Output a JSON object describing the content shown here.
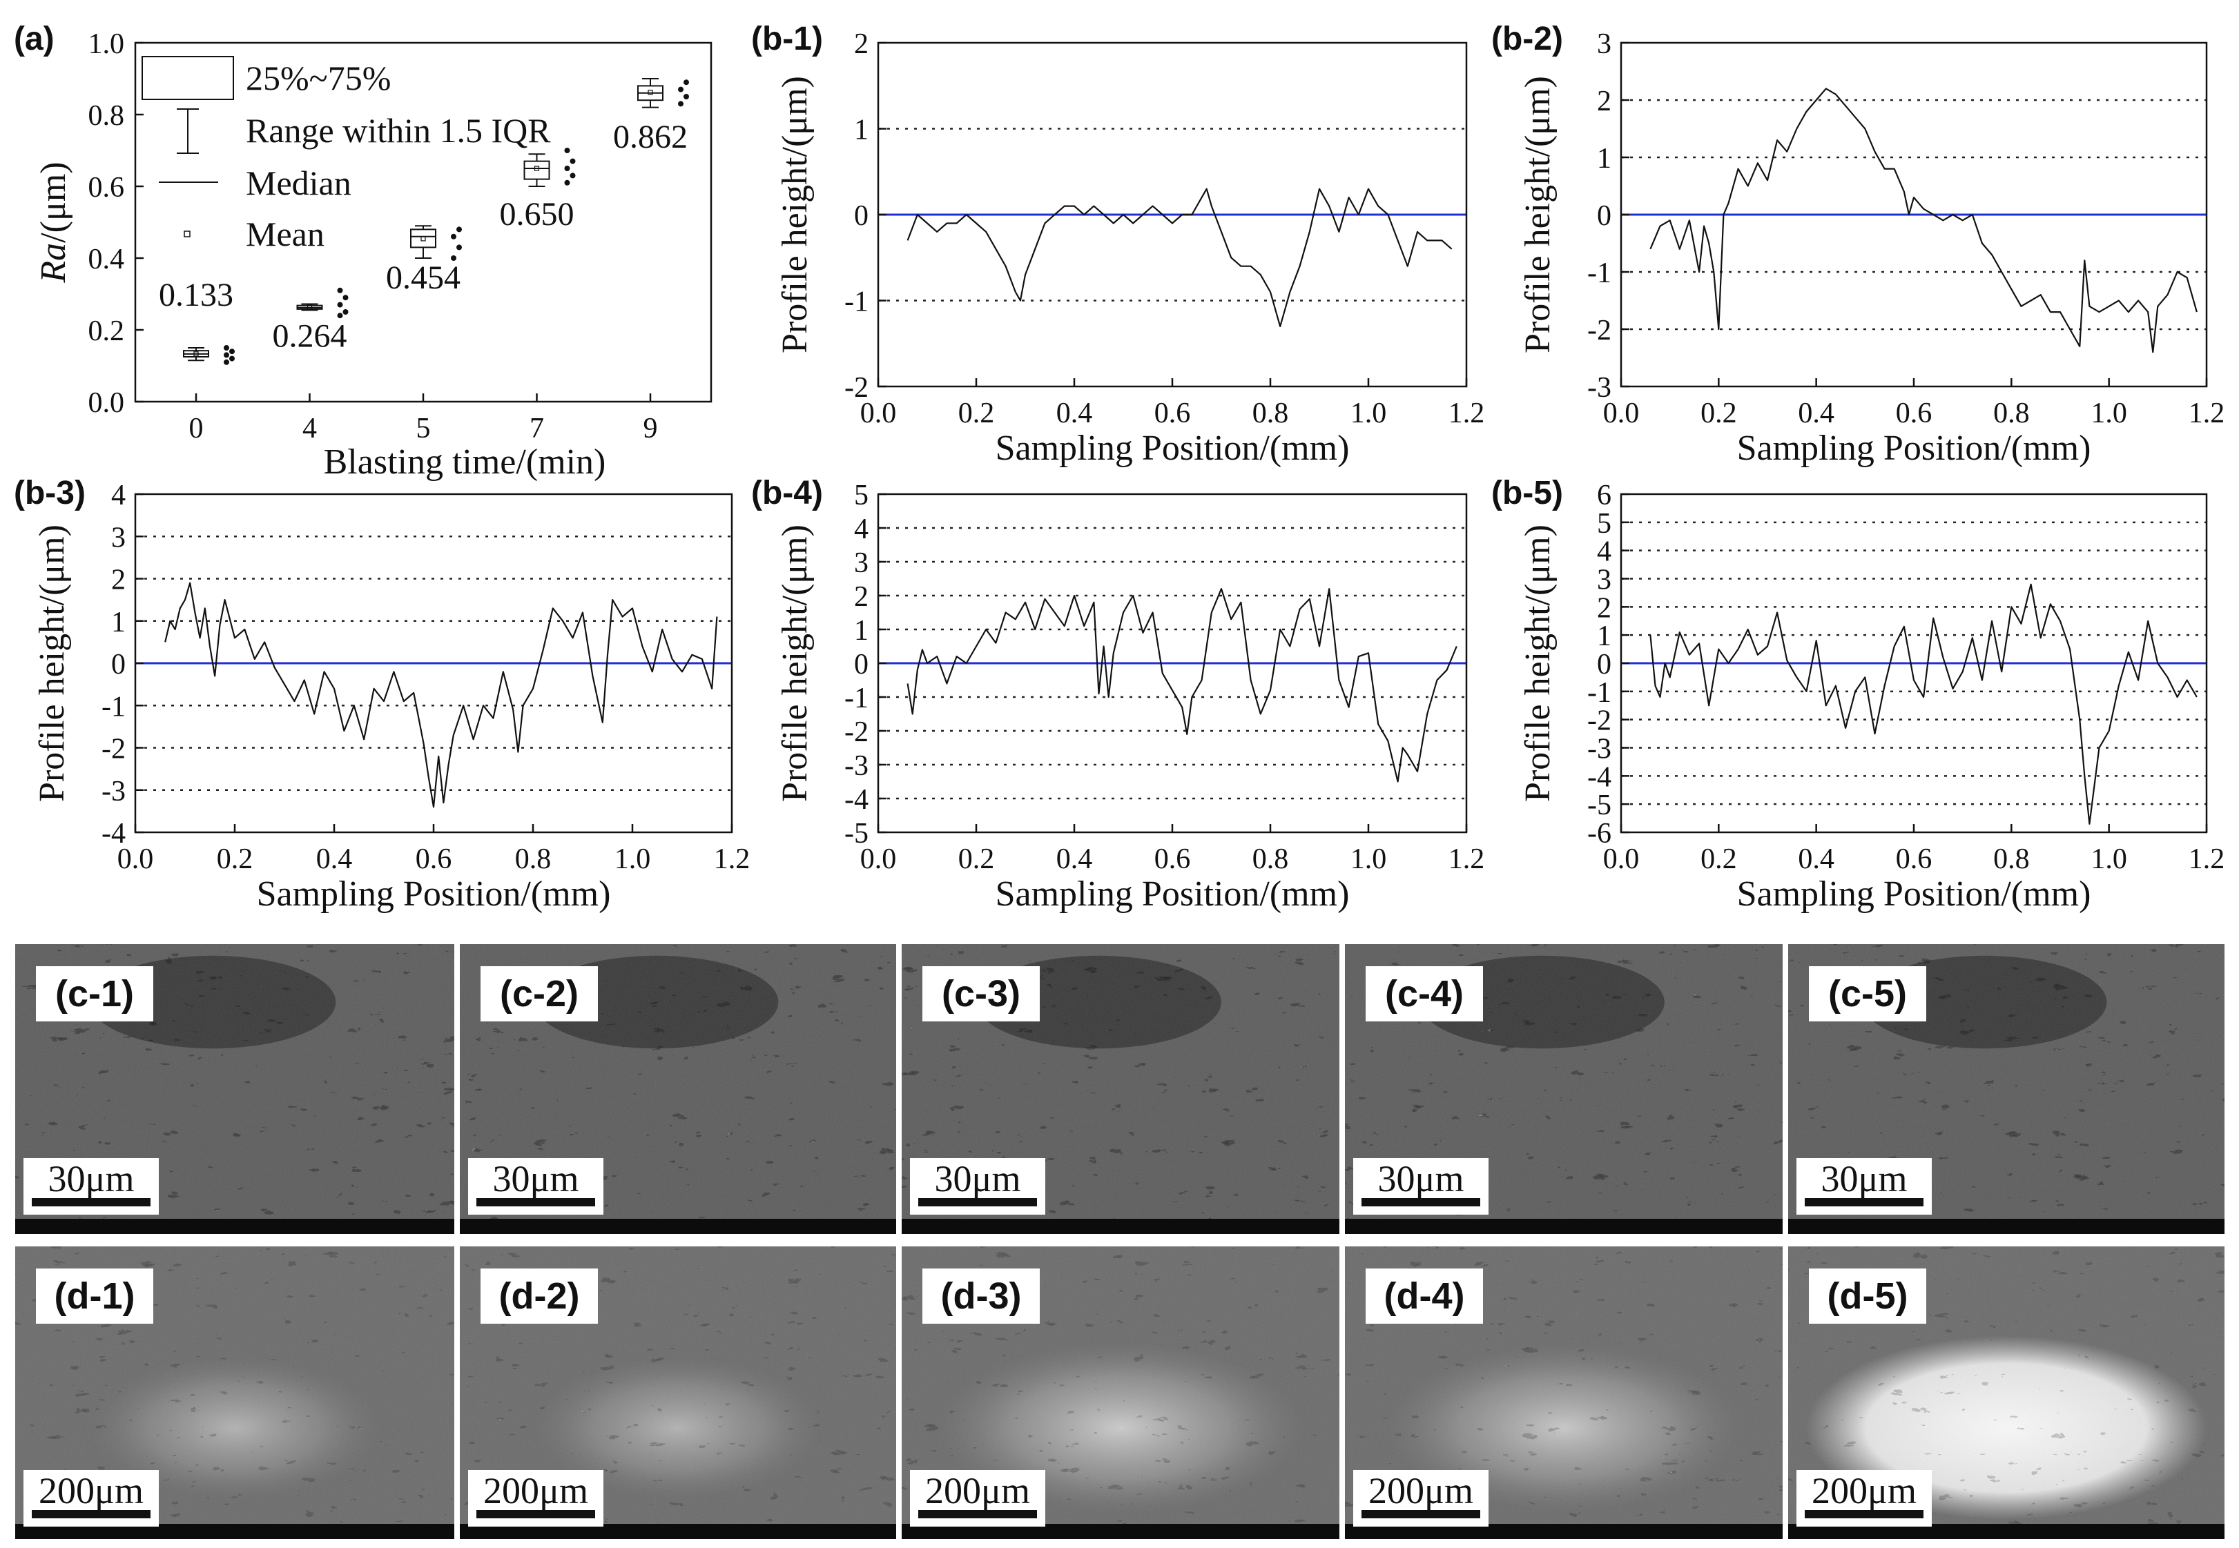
{
  "chart_data": [
    {
      "id": "a",
      "type": "box",
      "label": "(a)",
      "title": "",
      "xlabel": "Blasting time/(min)",
      "ylabel_italic": "Ra",
      "ylabel_rest": "/(μm)",
      "ylim": [
        0.0,
        1.0
      ],
      "yticks": [
        "0.0",
        "0.2",
        "0.4",
        "0.6",
        "0.8",
        "1.0"
      ],
      "categories": [
        "0",
        "4",
        "5",
        "7",
        "9"
      ],
      "means": [
        0.133,
        0.264,
        0.454,
        0.65,
        0.862
      ],
      "mean_labels": [
        "0.133",
        "0.264",
        "0.454",
        "0.650",
        "0.862"
      ],
      "boxes": [
        {
          "q1": 0.125,
          "q3": 0.142,
          "median": 0.133,
          "wlo": 0.115,
          "whi": 0.15,
          "points": [
            0.11,
            0.12,
            0.13,
            0.14,
            0.15
          ]
        },
        {
          "q1": 0.258,
          "q3": 0.268,
          "median": 0.262,
          "wlo": 0.255,
          "whi": 0.272,
          "points": [
            0.24,
            0.25,
            0.27,
            0.29,
            0.31
          ]
        },
        {
          "q1": 0.43,
          "q3": 0.48,
          "median": 0.46,
          "wlo": 0.4,
          "whi": 0.49,
          "points": [
            0.4,
            0.43,
            0.46,
            0.48
          ]
        },
        {
          "q1": 0.62,
          "q3": 0.67,
          "median": 0.65,
          "wlo": 0.6,
          "whi": 0.69,
          "points": [
            0.61,
            0.63,
            0.65,
            0.67,
            0.7
          ]
        },
        {
          "q1": 0.84,
          "q3": 0.88,
          "median": 0.86,
          "wlo": 0.82,
          "whi": 0.9,
          "points": [
            0.83,
            0.85,
            0.87,
            0.89
          ]
        }
      ],
      "legend": {
        "box": "25%~75%",
        "range": "Range within 1.5 IQR",
        "median": "Median",
        "mean": "Mean"
      }
    },
    {
      "id": "b1",
      "type": "line",
      "label": "(b-1)",
      "xlabel": "Sampling Position/(mm)",
      "ylabel": "Profile height/(μm)",
      "xlim": [
        0.0,
        1.2
      ],
      "ylim": [
        -2,
        2
      ],
      "xticks": [
        "0.0",
        "0.2",
        "0.4",
        "0.6",
        "0.8",
        "1.0",
        "1.2"
      ],
      "yticks": [
        "-2",
        "-1",
        "0",
        "1",
        "2"
      ],
      "grid_lines": [
        -1,
        1
      ],
      "x": [
        0.06,
        0.08,
        0.1,
        0.12,
        0.14,
        0.16,
        0.18,
        0.2,
        0.22,
        0.24,
        0.26,
        0.28,
        0.29,
        0.3,
        0.32,
        0.34,
        0.36,
        0.38,
        0.4,
        0.42,
        0.44,
        0.46,
        0.48,
        0.5,
        0.52,
        0.54,
        0.56,
        0.58,
        0.6,
        0.62,
        0.64,
        0.66,
        0.67,
        0.68,
        0.7,
        0.72,
        0.74,
        0.76,
        0.78,
        0.8,
        0.82,
        0.83,
        0.84,
        0.86,
        0.88,
        0.9,
        0.92,
        0.94,
        0.96,
        0.98,
        1.0,
        1.02,
        1.04,
        1.06,
        1.08,
        1.1,
        1.12,
        1.15,
        1.17
      ],
      "y": [
        -0.3,
        0.0,
        -0.1,
        -0.2,
        -0.1,
        -0.1,
        0.0,
        -0.1,
        -0.2,
        -0.4,
        -0.6,
        -0.9,
        -1.0,
        -0.7,
        -0.4,
        -0.1,
        0.0,
        0.1,
        0.1,
        0.0,
        0.1,
        0.0,
        -0.1,
        0.0,
        -0.1,
        0.0,
        0.1,
        0.0,
        -0.1,
        0.0,
        0.0,
        0.2,
        0.3,
        0.1,
        -0.2,
        -0.5,
        -0.6,
        -0.6,
        -0.7,
        -0.9,
        -1.3,
        -1.1,
        -0.9,
        -0.6,
        -0.2,
        0.3,
        0.1,
        -0.2,
        0.2,
        0.0,
        0.3,
        0.1,
        0.0,
        -0.3,
        -0.6,
        -0.2,
        -0.3,
        -0.3,
        -0.4
      ]
    },
    {
      "id": "b2",
      "type": "line",
      "label": "(b-2)",
      "xlabel": "Sampling Position/(mm)",
      "ylabel": "Profile height/(μm)",
      "xlim": [
        0.0,
        1.2
      ],
      "ylim": [
        -3,
        3
      ],
      "xticks": [
        "0.0",
        "0.2",
        "0.4",
        "0.6",
        "0.8",
        "1.0",
        "1.2"
      ],
      "yticks": [
        "-3",
        "-2",
        "-1",
        "0",
        "1",
        "2",
        "3"
      ],
      "grid_lines": [
        -2,
        -1,
        1,
        2
      ],
      "x": [
        0.06,
        0.08,
        0.1,
        0.12,
        0.14,
        0.16,
        0.17,
        0.18,
        0.19,
        0.2,
        0.21,
        0.22,
        0.24,
        0.26,
        0.28,
        0.3,
        0.32,
        0.34,
        0.36,
        0.38,
        0.4,
        0.42,
        0.44,
        0.46,
        0.48,
        0.5,
        0.52,
        0.54,
        0.56,
        0.58,
        0.59,
        0.6,
        0.62,
        0.64,
        0.66,
        0.68,
        0.7,
        0.72,
        0.74,
        0.76,
        0.78,
        0.8,
        0.82,
        0.84,
        0.86,
        0.88,
        0.9,
        0.92,
        0.94,
        0.95,
        0.96,
        0.98,
        1.0,
        1.02,
        1.04,
        1.06,
        1.08,
        1.09,
        1.1,
        1.12,
        1.14,
        1.16,
        1.18
      ],
      "y": [
        -0.6,
        -0.2,
        -0.1,
        -0.6,
        -0.1,
        -1.0,
        -0.2,
        -0.5,
        -1.0,
        -2.0,
        0.0,
        0.2,
        0.8,
        0.5,
        0.9,
        0.6,
        1.3,
        1.1,
        1.5,
        1.8,
        2.0,
        2.2,
        2.1,
        1.9,
        1.7,
        1.5,
        1.1,
        0.8,
        0.8,
        0.4,
        0.0,
        0.3,
        0.1,
        0.0,
        -0.1,
        0.0,
        -0.1,
        0.0,
        -0.5,
        -0.7,
        -1.0,
        -1.3,
        -1.6,
        -1.5,
        -1.4,
        -1.7,
        -1.7,
        -2.0,
        -2.3,
        -0.8,
        -1.6,
        -1.7,
        -1.6,
        -1.5,
        -1.7,
        -1.5,
        -1.7,
        -2.4,
        -1.6,
        -1.4,
        -1.0,
        -1.1,
        -1.7
      ]
    },
    {
      "id": "b3",
      "type": "line",
      "label": "(b-3)",
      "xlabel": "Sampling Position/(mm)",
      "ylabel": "Profile height/(μm)",
      "xlim": [
        0.0,
        1.2
      ],
      "ylim": [
        -4,
        4
      ],
      "xticks": [
        "0.0",
        "0.2",
        "0.4",
        "0.6",
        "0.8",
        "1.0",
        "1.2"
      ],
      "yticks": [
        "-4",
        "-3",
        "-2",
        "-1",
        "0",
        "1",
        "2",
        "3",
        "4"
      ],
      "grid_lines": [
        -3,
        -2,
        -1,
        1,
        2,
        3
      ],
      "x": [
        0.06,
        0.07,
        0.08,
        0.09,
        0.1,
        0.11,
        0.12,
        0.13,
        0.14,
        0.15,
        0.16,
        0.17,
        0.18,
        0.2,
        0.22,
        0.24,
        0.26,
        0.28,
        0.3,
        0.32,
        0.34,
        0.36,
        0.38,
        0.4,
        0.42,
        0.44,
        0.46,
        0.48,
        0.5,
        0.52,
        0.54,
        0.56,
        0.58,
        0.59,
        0.6,
        0.61,
        0.62,
        0.63,
        0.64,
        0.66,
        0.68,
        0.7,
        0.72,
        0.74,
        0.76,
        0.77,
        0.78,
        0.8,
        0.82,
        0.84,
        0.86,
        0.88,
        0.9,
        0.92,
        0.94,
        0.95,
        0.96,
        0.98,
        1.0,
        1.02,
        1.04,
        1.06,
        1.08,
        1.1,
        1.12,
        1.14,
        1.16,
        1.17
      ],
      "y": [
        0.5,
        1.0,
        0.8,
        1.3,
        1.5,
        1.9,
        1.2,
        0.6,
        1.3,
        0.4,
        -0.3,
        0.9,
        1.5,
        0.6,
        0.8,
        0.1,
        0.5,
        -0.1,
        -0.5,
        -0.9,
        -0.4,
        -1.2,
        -0.2,
        -0.6,
        -1.6,
        -1.0,
        -1.8,
        -0.6,
        -0.9,
        -0.2,
        -0.9,
        -0.7,
        -1.9,
        -2.7,
        -3.4,
        -2.2,
        -3.3,
        -2.4,
        -1.7,
        -1.0,
        -1.8,
        -1.0,
        -1.3,
        -0.2,
        -1.1,
        -2.1,
        -1.0,
        -0.6,
        0.3,
        1.3,
        1.0,
        0.6,
        1.2,
        -0.3,
        -1.4,
        0.2,
        1.5,
        1.1,
        1.3,
        0.4,
        -0.2,
        0.8,
        0.1,
        -0.2,
        0.2,
        0.1,
        -0.6,
        1.1
      ]
    },
    {
      "id": "b4",
      "type": "line",
      "label": "(b-4)",
      "xlabel": "Sampling Position/(mm)",
      "ylabel": "Profile height/(μm)",
      "xlim": [
        0.0,
        1.2
      ],
      "ylim": [
        -5,
        5
      ],
      "xticks": [
        "0.0",
        "0.2",
        "0.4",
        "0.6",
        "0.8",
        "1.0",
        "1.2"
      ],
      "yticks": [
        "-5",
        "-4",
        "-3",
        "-2",
        "-1",
        "0",
        "1",
        "2",
        "3",
        "4",
        "5"
      ],
      "grid_lines": [
        -4,
        -3,
        -2,
        -1,
        1,
        2,
        3,
        4
      ],
      "x": [
        0.06,
        0.07,
        0.08,
        0.09,
        0.1,
        0.12,
        0.14,
        0.16,
        0.18,
        0.2,
        0.22,
        0.24,
        0.26,
        0.28,
        0.3,
        0.32,
        0.34,
        0.36,
        0.38,
        0.4,
        0.42,
        0.44,
        0.45,
        0.46,
        0.47,
        0.48,
        0.5,
        0.52,
        0.54,
        0.56,
        0.58,
        0.6,
        0.62,
        0.63,
        0.64,
        0.66,
        0.68,
        0.7,
        0.72,
        0.74,
        0.76,
        0.78,
        0.8,
        0.82,
        0.84,
        0.86,
        0.88,
        0.9,
        0.92,
        0.94,
        0.96,
        0.98,
        1.0,
        1.02,
        1.04,
        1.06,
        1.07,
        1.08,
        1.1,
        1.12,
        1.14,
        1.16,
        1.18
      ],
      "y": [
        -0.6,
        -1.5,
        -0.2,
        0.4,
        0.0,
        0.2,
        -0.6,
        0.2,
        0.0,
        0.5,
        1.0,
        0.6,
        1.5,
        1.3,
        1.8,
        1.0,
        1.9,
        1.5,
        1.1,
        2.0,
        1.1,
        1.8,
        -0.9,
        0.5,
        -1.0,
        0.3,
        1.5,
        2.0,
        0.9,
        1.5,
        -0.3,
        -0.8,
        -1.3,
        -2.1,
        -1.0,
        -0.5,
        1.5,
        2.2,
        1.3,
        1.8,
        -0.5,
        -1.5,
        -0.8,
        1.0,
        0.5,
        1.6,
        1.9,
        0.5,
        2.2,
        -0.5,
        -1.3,
        0.2,
        0.3,
        -1.8,
        -2.3,
        -3.5,
        -2.5,
        -2.7,
        -3.2,
        -1.5,
        -0.5,
        -0.2,
        0.5
      ]
    },
    {
      "id": "b5",
      "type": "line",
      "label": "(b-5)",
      "xlabel": "Sampling Position/(mm)",
      "ylabel": "Profile height/(μm)",
      "xlim": [
        0.0,
        1.2
      ],
      "ylim": [
        -6,
        6
      ],
      "xticks": [
        "0.0",
        "0.2",
        "0.4",
        "0.6",
        "0.8",
        "1.0",
        "1.2"
      ],
      "yticks": [
        "-6",
        "-5",
        "-4",
        "-3",
        "-2",
        "-1",
        "0",
        "1",
        "2",
        "3",
        "4",
        "5",
        "6"
      ],
      "grid_lines": [
        -5,
        -4,
        -3,
        -2,
        -1,
        1,
        2,
        3,
        4,
        5
      ],
      "x": [
        0.06,
        0.07,
        0.08,
        0.09,
        0.1,
        0.12,
        0.14,
        0.16,
        0.18,
        0.2,
        0.22,
        0.24,
        0.26,
        0.28,
        0.3,
        0.32,
        0.34,
        0.36,
        0.38,
        0.4,
        0.42,
        0.44,
        0.46,
        0.48,
        0.5,
        0.52,
        0.54,
        0.56,
        0.58,
        0.6,
        0.62,
        0.64,
        0.66,
        0.68,
        0.7,
        0.72,
        0.74,
        0.76,
        0.78,
        0.8,
        0.82,
        0.84,
        0.86,
        0.88,
        0.9,
        0.92,
        0.94,
        0.95,
        0.96,
        0.98,
        1.0,
        1.02,
        1.04,
        1.06,
        1.08,
        1.1,
        1.12,
        1.14,
        1.16,
        1.18
      ],
      "y": [
        1.0,
        -0.8,
        -1.2,
        0.0,
        -0.5,
        1.1,
        0.3,
        0.7,
        -1.5,
        0.5,
        0.0,
        0.5,
        1.2,
        0.3,
        0.6,
        1.8,
        0.1,
        -0.5,
        -1.0,
        0.8,
        -1.5,
        -0.8,
        -2.3,
        -1.0,
        -0.5,
        -2.5,
        -0.8,
        0.6,
        1.3,
        -0.6,
        -1.2,
        1.6,
        0.2,
        -0.9,
        -0.3,
        0.9,
        -0.6,
        1.5,
        -0.3,
        2.0,
        1.4,
        2.8,
        0.9,
        2.1,
        1.5,
        0.5,
        -2.0,
        -4.0,
        -5.7,
        -3.0,
        -2.4,
        -0.8,
        0.4,
        -0.6,
        1.5,
        0.0,
        -0.5,
        -1.2,
        -0.6,
        -1.2
      ]
    }
  ],
  "sem_c": {
    "labels": [
      "(c-1)",
      "(c-2)",
      "(c-3)",
      "(c-4)",
      "(c-5)"
    ],
    "scale": "30μm"
  },
  "sem_d": {
    "labels": [
      "(d-1)",
      "(d-2)",
      "(d-3)",
      "(d-4)",
      "(d-5)"
    ],
    "scale": "200μm"
  },
  "colors": {
    "zero_line": "#1f2fd6",
    "profile": "#111111",
    "axis": "#111111"
  }
}
